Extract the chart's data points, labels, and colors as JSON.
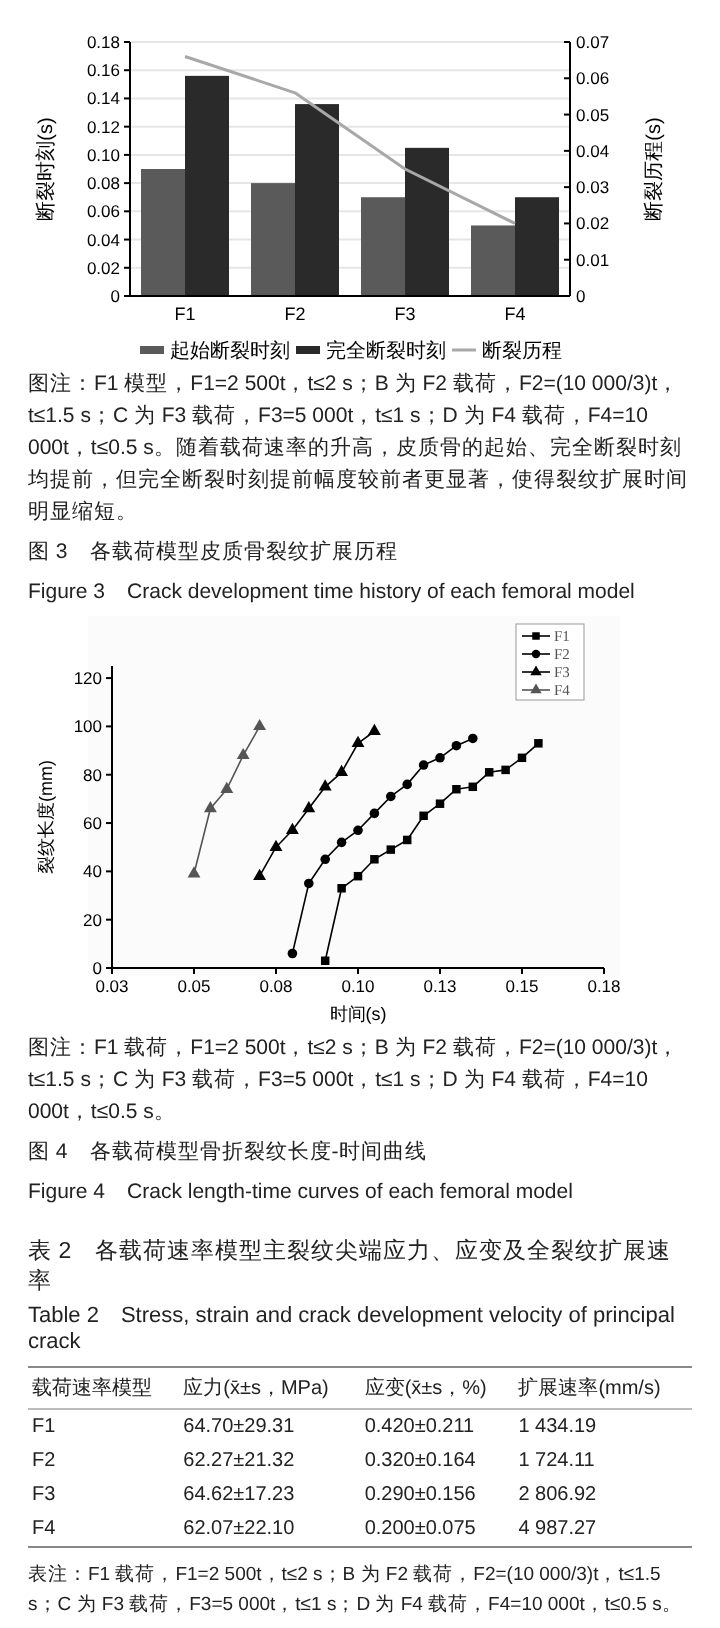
{
  "chart_data": [
    {
      "type": "bar",
      "categories": [
        "F1",
        "F2",
        "F3",
        "F4"
      ],
      "ylabel": "断裂时刻(s)",
      "y2label": "断裂历程(s)",
      "ylim": [
        0,
        0.18
      ],
      "yticks": [
        0,
        0.02,
        0.04,
        0.06,
        0.08,
        {
          "value": 0.1,
          "label": "0.10"
        },
        0.12,
        0.14,
        0.16,
        0.18
      ],
      "y2lim": [
        0,
        0.07
      ],
      "y2ticks": [
        0,
        0.01,
        0.02,
        0.03,
        0.04,
        0.05,
        0.06,
        0.07
      ],
      "grid": "y",
      "legend": "bottom",
      "series": [
        {
          "name": "起始断裂时刻",
          "color": "#5a5a5a",
          "values": [
            0.09,
            0.08,
            0.07,
            0.05
          ]
        },
        {
          "name": "完全断裂时刻",
          "color": "#2a2a2a",
          "values": [
            0.156,
            0.136,
            0.105,
            0.07
          ]
        },
        {
          "name": "断裂历程",
          "type": "line",
          "axis": "y2",
          "color": "#a8a8a8",
          "values": [
            0.066,
            0.056,
            0.035,
            0.02
          ]
        }
      ],
      "annotations": [
        "图注：F1 模型，F1=2 500t，t≤2 s；B 为 F2 载荷，F2=(10 000/3)t，t≤1.5 s；C 为 F3 载荷，F3=5 000t，t≤1 s；D 为 F4 载荷，F4=10 000t，t≤0.5 s。随着载荷速率的升高，皮质骨的起始、完全断裂时刻均提前，但完全断裂时刻提前幅度较前者更显著，使得裂纹扩展时间明显缩短。",
        "图 3　各载荷模型皮质骨裂纹扩展历程",
        "Figure 3　Crack development time history of each femoral model"
      ]
    },
    {
      "type": "line",
      "xlabel": "时间(s)",
      "ylabel": "裂纹长度(mm)",
      "xlim": [
        0.025,
        0.175
      ],
      "xticks": [
        {
          "value": 0.025,
          "label": "0.03"
        },
        0.05,
        {
          "value": 0.075,
          "label": "0.08"
        },
        {
          "value": 0.1,
          "label": "0.10"
        },
        {
          "value": 0.125,
          "label": "0.13"
        },
        0.15,
        {
          "value": 0.175,
          "label": "0.18"
        }
      ],
      "ylim": [
        0,
        125
      ],
      "yticks": [
        0,
        20,
        40,
        60,
        80,
        100,
        120
      ],
      "legend": "top right",
      "series": [
        {
          "name": "F1",
          "color": "#000000",
          "marker": "square",
          "x": [
            0.09,
            0.095,
            0.1,
            0.105,
            0.11,
            0.115,
            0.12,
            0.125,
            0.13,
            0.135,
            0.14,
            0.145,
            0.15,
            0.155
          ],
          "values": [
            3,
            33,
            38,
            45,
            49,
            53,
            63,
            68,
            74,
            75,
            81,
            82,
            87,
            93
          ]
        },
        {
          "name": "F2",
          "color": "#000000",
          "marker": "circle",
          "x": [
            0.08,
            0.085,
            0.09,
            0.095,
            0.1,
            0.105,
            0.11,
            0.115,
            0.12,
            0.125,
            0.13,
            0.135
          ],
          "values": [
            6,
            35,
            45,
            52,
            57,
            64,
            71,
            76,
            84,
            87,
            92,
            95
          ]
        },
        {
          "name": "F3",
          "color": "#000000",
          "marker": "triangle",
          "x": [
            0.07,
            0.075,
            0.08,
            0.085,
            0.09,
            0.095,
            0.1,
            0.105
          ],
          "values": [
            38,
            50,
            57,
            66,
            75,
            81,
            93,
            98
          ]
        },
        {
          "name": "F4",
          "color": "#555555",
          "marker": "triangle",
          "x": [
            0.05,
            0.055,
            0.06,
            0.065,
            0.07
          ],
          "values": [
            39,
            66,
            74,
            88,
            100
          ]
        }
      ],
      "annotations": [
        "图注：F1 载荷，F1=2 500t，t≤2 s；B 为 F2 载荷，F2=(10 000/3)t，t≤1.5 s；C 为 F3 载荷，F3=5 000t，t≤1 s；D 为 F4 载荷，F4=10 000t，t≤0.5 s。",
        "图 4　各载荷模型骨折裂纹长度-时间曲线",
        "Figure 4　Crack length-time curves of each femoral model"
      ]
    },
    {
      "type": "other",
      "title": "表 2　各载荷速率模型主裂纹尖端应力、应变及全裂纹扩展速率",
      "subtitle": "Table 2　Stress, strain and crack development velocity of principal crack",
      "annotations": [
        "载荷速率模型",
        "应力(x̄±s，MPa)",
        "应变(x̄±s，%)",
        "扩展速率(mm/s)",
        "F1",
        "64.70±29.31",
        "0.420±0.211",
        "1 434.19",
        "F2",
        "62.27±21.32",
        "0.320±0.164",
        "1 724.11",
        "F3",
        "64.62±17.23",
        "0.290±0.156",
        "2 806.92",
        "F4",
        "62.07±22.10",
        "0.200±0.075",
        "4 987.27",
        "表注：F1 载荷，F1=2 500t，t≤2 s；B 为 F2 载荷，F2=(10 000/3)t，t≤1.5 s；C 为 F3 载荷，F3=5 000t，t≤1 s；D 为 F4 载荷，F4=10 000t，t≤0.5 s。"
      ]
    }
  ]
}
